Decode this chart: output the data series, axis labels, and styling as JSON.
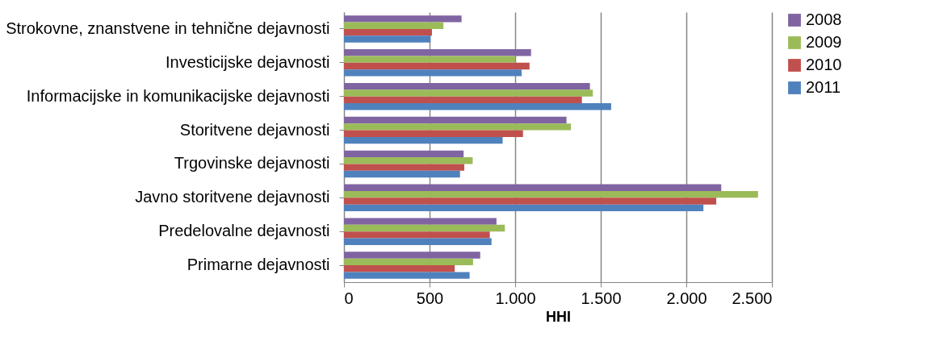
{
  "chart_data": {
    "type": "bar",
    "orientation": "horizontal",
    "xlabel": "HHI",
    "categories": [
      "Strokovne, znanstvene in tehnične dejavnosti",
      "Investicijske dejavnosti",
      "Informacijske in komunikacijske dejavnosti",
      "Storitvene dejavnosti",
      "Trgovinske dejavnosti",
      "Javno storitvene dejavnosti",
      "Predelovalne dejavnosti",
      "Primarne dejavnosti"
    ],
    "series": [
      {
        "name": "2008",
        "color": "#8064a2",
        "values": [
          687,
          1093,
          1437,
          1300,
          699,
          2204,
          891,
          796
        ]
      },
      {
        "name": "2009",
        "color": "#9bbb59",
        "values": [
          581,
          1000,
          1454,
          1326,
          752,
          2419,
          940,
          754
        ]
      },
      {
        "name": "2010",
        "color": "#c0504d",
        "values": [
          514,
          1084,
          1390,
          1046,
          703,
          2175,
          852,
          647
        ]
      },
      {
        "name": "2011",
        "color": "#4f81bd",
        "values": [
          506,
          1038,
          1561,
          927,
          678,
          2100,
          862,
          734
        ]
      }
    ],
    "xlim": [
      0,
      2500
    ],
    "xticks": [
      0,
      500,
      {
        "value": 1000,
        "label": "1.000"
      },
      {
        "value": 1500,
        "label": "1.500"
      },
      {
        "value": 2000,
        "label": "2.000"
      },
      {
        "value": 2500,
        "label": "2.500"
      }
    ],
    "grid": "x",
    "legend": "right"
  }
}
